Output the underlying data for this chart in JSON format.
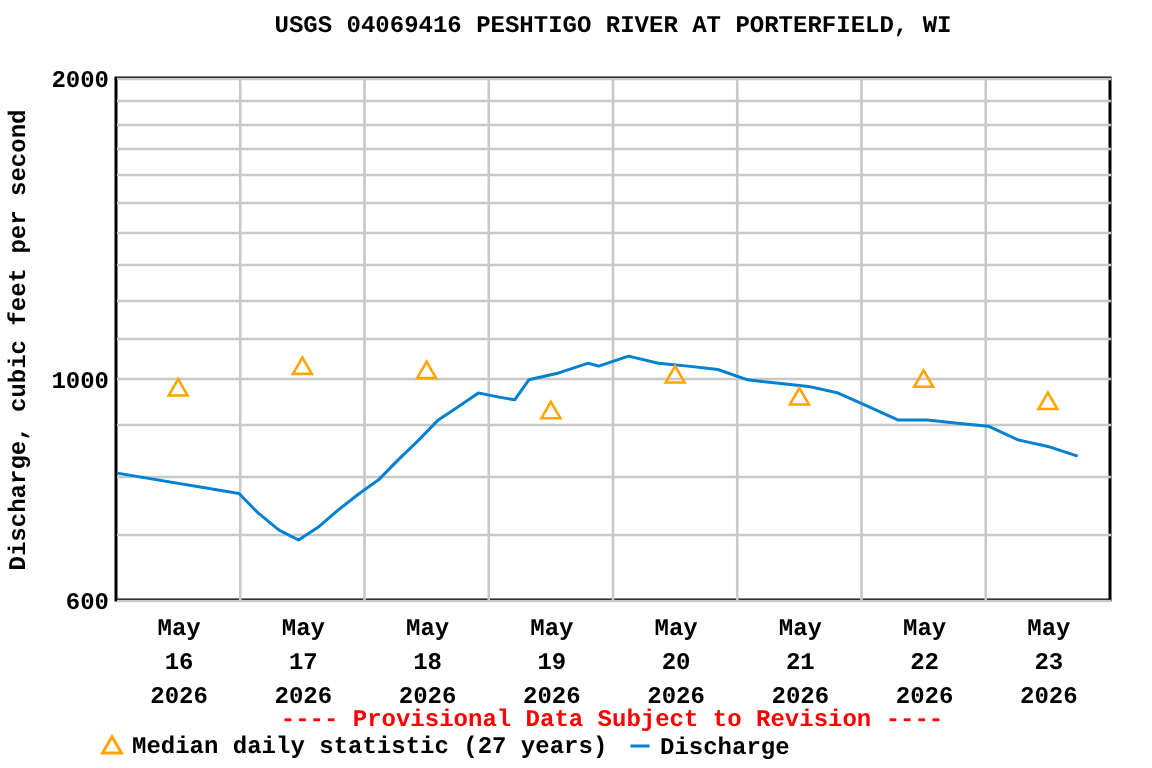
{
  "chart_data": {
    "type": "line",
    "title": "USGS 04069416 PESHTIGO RIVER AT PORTERFIELD, WI",
    "ylabel": "Discharge, cubic feet per second",
    "annotations": [
      "---- Provisional Data Subject to Revision ----"
    ],
    "log": true,
    "grid": true,
    "legend": "bottom",
    "xlim": [
      "2026-05-16T00:00",
      "2026-05-24T00:00"
    ],
    "xticks": [
      {
        "value": "2026-05-16T12:00",
        "label": "May 16 2026"
      },
      {
        "value": "2026-05-17T00:00",
        "label": null
      },
      {
        "value": "2026-05-17T12:00",
        "label": "May 17 2026"
      },
      {
        "value": "2026-05-18T00:00",
        "label": null
      },
      {
        "value": "2026-05-18T12:00",
        "label": "May 18 2026"
      },
      {
        "value": "2026-05-19T00:00",
        "label": null
      },
      {
        "value": "2026-05-19T12:00",
        "label": "May 19 2026"
      },
      {
        "value": "2026-05-20T00:00",
        "label": null
      },
      {
        "value": "2026-05-20T12:00",
        "label": "May 20 2026"
      },
      {
        "value": "2026-05-21T00:00",
        "label": null
      },
      {
        "value": "2026-05-21T12:00",
        "label": "May 21 2026"
      },
      {
        "value": "2026-05-22T00:00",
        "label": null
      },
      {
        "value": "2026-05-22T12:00",
        "label": "May 22 2026"
      },
      {
        "value": "2026-05-23T00:00",
        "label": null
      },
      {
        "value": "2026-05-23T12:00",
        "label": "May 23 2026"
      }
    ],
    "ylim": [
      600,
      2000
    ],
    "yticks": [
      600,
      {
        "value": 700,
        "label": null
      },
      {
        "value": 800,
        "label": null
      },
      {
        "value": 900,
        "label": null
      },
      1000,
      {
        "value": 1100,
        "label": null
      },
      {
        "value": 1200,
        "label": null
      },
      {
        "value": 1300,
        "label": null
      },
      {
        "value": 1400,
        "label": null
      },
      {
        "value": 1500,
        "label": null
      },
      {
        "value": 1600,
        "label": null
      },
      {
        "value": 1700,
        "label": null
      },
      {
        "value": 1800,
        "label": null
      },
      {
        "value": 1900,
        "label": null
      },
      2000
    ],
    "series": [
      {
        "name": "Median daily statistic (27 years)",
        "type": "scatter",
        "marker": "triangle",
        "color": "#ffa500",
        "x": [
          "2026-05-16T12:00",
          "2026-05-17T12:00",
          "2026-05-18T12:00",
          "2026-05-19T12:00",
          "2026-05-20T12:00",
          "2026-05-21T12:00",
          "2026-05-22T12:00",
          "2026-05-23T12:00"
        ],
        "values": [
          980,
          1030,
          1020,
          930,
          1010,
          960,
          1000,
          950
        ]
      },
      {
        "name": "Discharge",
        "line_style": "solid",
        "color": "#0080d0",
        "x": [
          "2026-05-16T00:15",
          "2026-05-16T23:45",
          "2026-05-17T03:30",
          "2026-05-17T07:30",
          "2026-05-17T11:15",
          "2026-05-17T13:15",
          "2026-05-17T15:15",
          "2026-05-17T19:00",
          "2026-05-17T23:00",
          "2026-05-18T02:45",
          "2026-05-18T06:30",
          "2026-05-18T10:30",
          "2026-05-18T14:15",
          "2026-05-18T18:15",
          "2026-05-18T22:00",
          "2026-05-19T02:00",
          "2026-05-19T05:00",
          "2026-05-19T07:45",
          "2026-05-19T13:30",
          "2026-05-19T19:15",
          "2026-05-19T21:15",
          "2026-05-20T03:00",
          "2026-05-20T08:45",
          "2026-05-20T14:30",
          "2026-05-20T20:15",
          "2026-05-21T02:00",
          "2026-05-21T08:00",
          "2026-05-21T13:45",
          "2026-05-21T19:30",
          "2026-05-22T01:15",
          "2026-05-22T07:00",
          "2026-05-22T12:45",
          "2026-05-22T18:30",
          "2026-05-23T00:30",
          "2026-05-23T06:15",
          "2026-05-23T12:00",
          "2026-05-23T17:45"
        ],
        "values": [
          804,
          767,
          733,
          705,
          689,
          700,
          711,
          739,
          767,
          792,
          829,
          868,
          909,
          938,
          967,
          958,
          952,
          997,
          1013,
          1036,
          1029,
          1053,
          1036,
          1029,
          1021,
          997,
          989,
          982,
          967,
          938,
          909,
          909,
          902,
          896,
          868,
          855,
          836
        ]
      }
    ]
  }
}
